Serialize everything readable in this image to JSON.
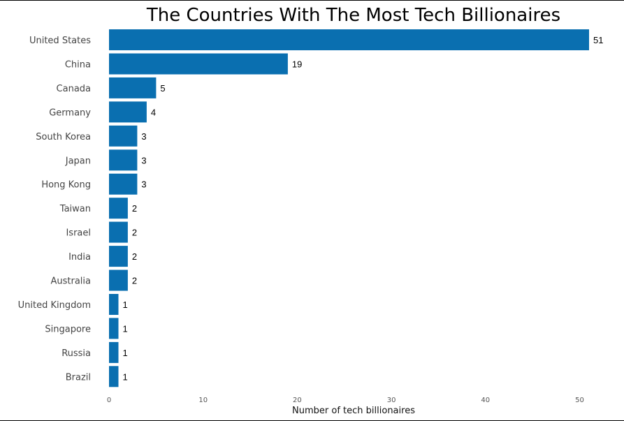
{
  "chart_data": {
    "type": "bar",
    "orientation": "horizontal",
    "title": "The Countries With The Most Tech Billionaires",
    "xlabel": "Number of tech billionaires",
    "ylabel": "",
    "categories": [
      "United States",
      "China",
      "Canada",
      "Germany",
      "South Korea",
      "Japan",
      "Hong Kong",
      "Taiwan",
      "Israel",
      "India",
      "Australia",
      "United Kingdom",
      "Singapore",
      "Russia",
      "Brazil"
    ],
    "values": [
      51,
      19,
      5,
      4,
      3,
      3,
      3,
      2,
      2,
      2,
      2,
      1,
      1,
      1,
      1
    ],
    "xlim": [
      0,
      51
    ],
    "xticks": [
      0,
      10,
      20,
      30,
      40,
      50
    ],
    "grid": false,
    "bar_color": "#0a6fb0",
    "data_labels": true
  }
}
